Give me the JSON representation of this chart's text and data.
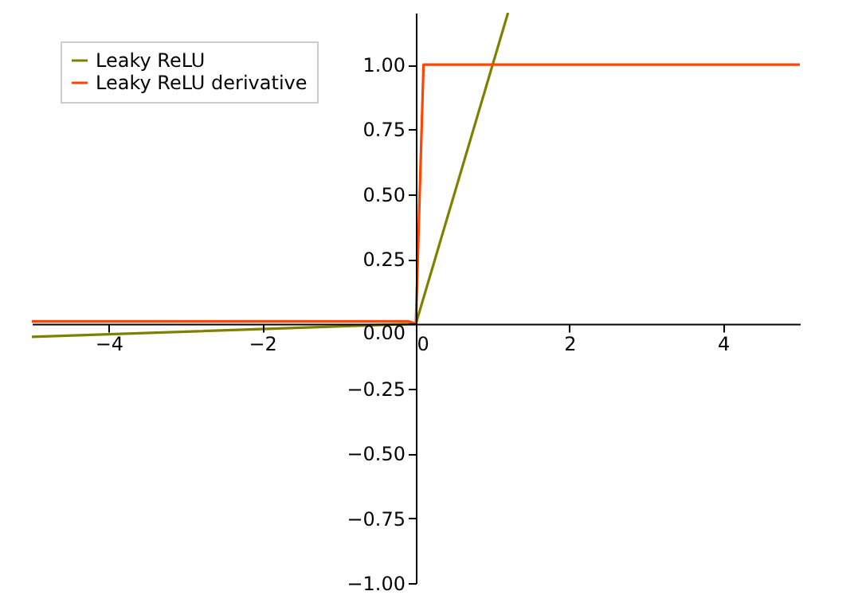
{
  "chart_data": {
    "type": "line",
    "series": [
      {
        "name": "Leaky ReLU",
        "color": "#808000",
        "x": [
          -5,
          0,
          1.2
        ],
        "values": [
          -0.05,
          0,
          1.2
        ]
      },
      {
        "name": "Leaky ReLU derivative",
        "color": "#ff4500",
        "x": [
          -5,
          -0.1,
          0,
          0.1,
          5
        ],
        "values": [
          0.01,
          0.01,
          0,
          1,
          1
        ]
      }
    ],
    "xlim": [
      -5,
      5
    ],
    "ylim": [
      -1,
      1.2
    ],
    "xticks": [
      {
        "value": -4,
        "label": "−4"
      },
      {
        "value": -2,
        "label": "−2"
      },
      {
        "value": 0,
        "label": "0"
      },
      {
        "value": 2,
        "label": "2"
      },
      {
        "value": 4,
        "label": "4"
      }
    ],
    "yticks": [
      {
        "value": -1,
        "label": "−1.00"
      },
      {
        "value": -0.75,
        "label": "−0.75"
      },
      {
        "value": -0.5,
        "label": "−0.50"
      },
      {
        "value": -0.25,
        "label": "−0.25"
      },
      {
        "value": 0,
        "label": "0.00"
      },
      {
        "value": 0.25,
        "label": "0.25"
      },
      {
        "value": 0.5,
        "label": "0.50"
      },
      {
        "value": 0.75,
        "label": "0.75"
      },
      {
        "value": 1,
        "label": "1.00"
      }
    ],
    "grid": false,
    "legend": "top left",
    "line_style": "solid",
    "marker": "none"
  }
}
